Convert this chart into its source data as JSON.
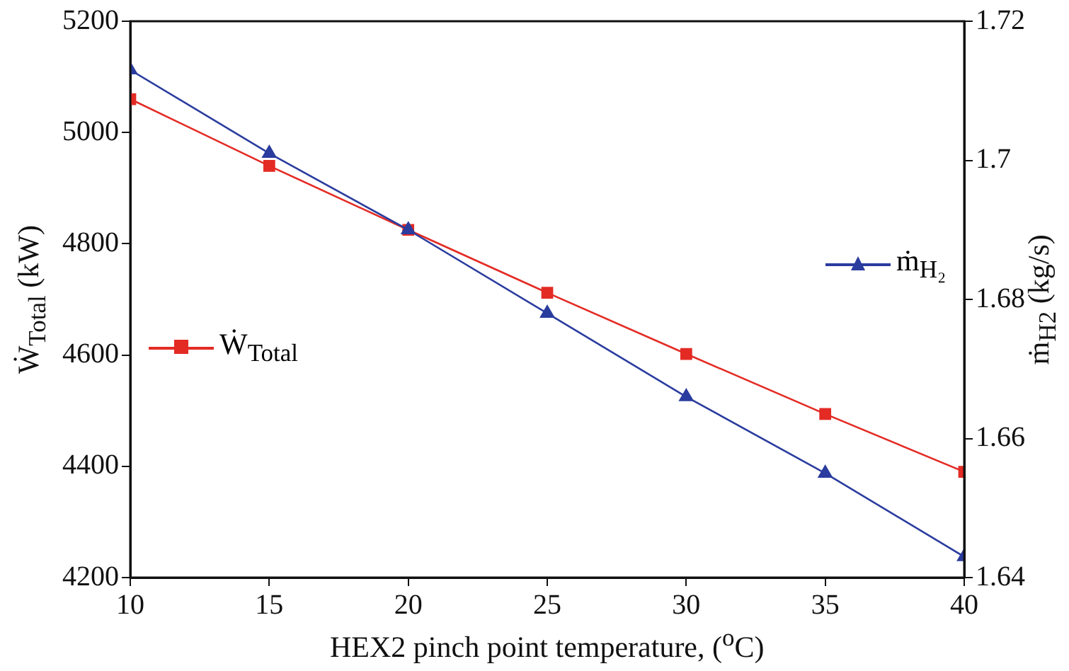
{
  "chart_data": {
    "type": "line",
    "xlabel": "HEX2 pinch point temperature, ($^{o}$C)",
    "ylabel": "Ẇ$_{Total}$ (kW)",
    "y2label": "ṁ$_{H2}$ (kg/s)",
    "x": [
      10,
      15,
      20,
      25,
      30,
      35,
      40
    ],
    "xlim": [
      10,
      40
    ],
    "xticks": [
      10,
      15,
      20,
      25,
      30,
      35,
      40
    ],
    "ylim": [
      4200,
      5200
    ],
    "yticks": [
      4200,
      4400,
      4600,
      4800,
      5000,
      5200
    ],
    "y2lim": [
      1.64,
      1.72
    ],
    "y2ticks": [
      1.64,
      1.66,
      1.68,
      {
        "value": 1.7,
        "label": "1.7"
      },
      1.72
    ],
    "grid": false,
    "legend": "left",
    "series": [
      {
        "name": "Ẇ$_{Total}$",
        "color": "#e32b24",
        "marker": "square",
        "values": [
          5060,
          4940,
          4825,
          4712,
          4602,
          4494,
          4390
        ]
      },
      {
        "name": "ṁ$_{H₂}$",
        "color": "#2a3c9e",
        "marker": "triangle",
        "axis": "y2",
        "values": [
          1.713,
          1.701,
          1.69,
          1.678,
          1.666,
          1.655,
          1.643
        ]
      }
    ]
  }
}
